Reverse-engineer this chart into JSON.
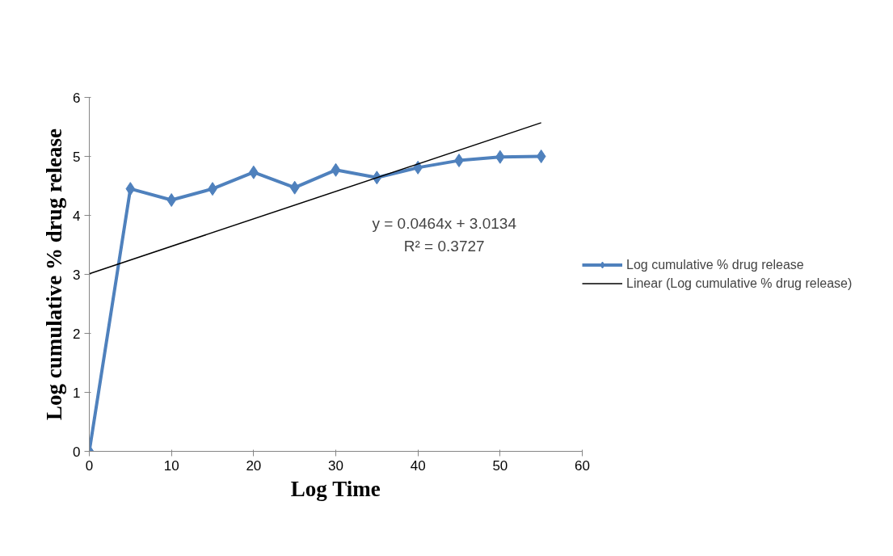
{
  "chart_data": {
    "type": "line",
    "xlabel": "Log Time",
    "ylabel": "Log cumulative % drug release",
    "x": [
      0,
      5,
      10,
      15,
      20,
      25,
      30,
      35,
      40,
      45,
      50,
      55
    ],
    "series": [
      {
        "name": "Log cumulative % drug release",
        "color": "#4f81bd",
        "marker": "diamond",
        "values": [
          0,
          4.45,
          4.26,
          4.45,
          4.73,
          4.47,
          4.77,
          4.64,
          4.81,
          4.93,
          4.99,
          5.0
        ]
      },
      {
        "name": "Linear (Log cumulative % drug release)",
        "color": "#000000",
        "marker": "none",
        "x": [
          0,
          55
        ],
        "values": [
          3.01,
          5.57
        ]
      }
    ],
    "annotations": [
      "y = 0.0464x + 3.0134",
      "R² = 0.3727"
    ],
    "xlim": [
      0,
      60
    ],
    "xticks": [
      0,
      10,
      20,
      30,
      40,
      50,
      60
    ],
    "ylim": [
      0,
      6
    ],
    "yticks": [
      0,
      1,
      2,
      3,
      4,
      5,
      6
    ],
    "grid": false,
    "legend": "right",
    "line_style": "solid"
  }
}
